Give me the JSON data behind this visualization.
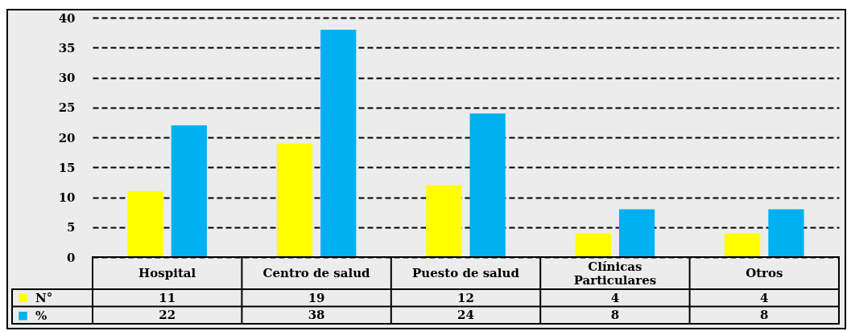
{
  "chart_data": {
    "type": "bar",
    "categories": [
      "Hospital",
      "Centro de salud",
      "Puesto de salud",
      "Clínicas Particulares",
      "Otros"
    ],
    "series": [
      {
        "name": "N°",
        "color": "#ffff00",
        "values": [
          11,
          19,
          12,
          4,
          4
        ]
      },
      {
        "name": "%",
        "color": "#00b0f0",
        "values": [
          22,
          38,
          24,
          8,
          8
        ]
      }
    ],
    "ylim": [
      0,
      40
    ],
    "yticks": [
      0,
      5,
      10,
      15,
      20,
      25,
      30,
      35,
      40
    ],
    "grid": "y",
    "legend": "bottom left",
    "data_labels": true
  }
}
